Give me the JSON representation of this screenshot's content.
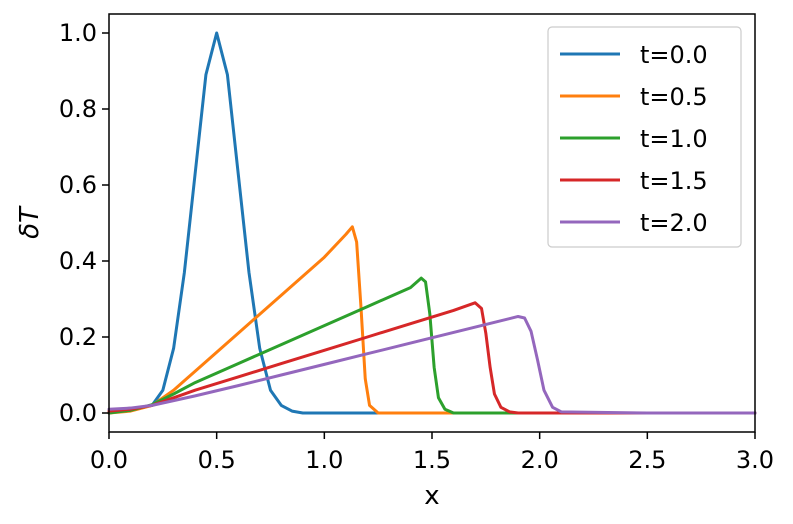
{
  "chart_data": {
    "type": "line",
    "title": "",
    "xlabel": "x",
    "ylabel": "δT",
    "xlim": [
      0.0,
      3.0
    ],
    "ylim": [
      -0.05,
      1.05
    ],
    "xticks": [
      "0.0",
      "0.5",
      "1.0",
      "1.5",
      "2.0",
      "2.5",
      "3.0"
    ],
    "yticks": [
      "0.0",
      "0.2",
      "0.4",
      "0.6",
      "0.8",
      "1.0"
    ],
    "grid": false,
    "legend_position": "top-right",
    "series": [
      {
        "name": "t=0.0",
        "color": "#1f77b4",
        "x": [
          0.0,
          0.2,
          0.25,
          0.3,
          0.35,
          0.4,
          0.45,
          0.5,
          0.55,
          0.6,
          0.65,
          0.7,
          0.75,
          0.8,
          0.85,
          0.9,
          1.0,
          1.5,
          2.0,
          2.5,
          3.0
        ],
        "y": [
          0.0,
          0.02,
          0.06,
          0.17,
          0.37,
          0.63,
          0.89,
          1.0,
          0.89,
          0.63,
          0.37,
          0.17,
          0.06,
          0.02,
          0.005,
          0.0,
          0.0,
          0.0,
          0.0,
          0.0,
          0.0
        ]
      },
      {
        "name": "t=0.5",
        "color": "#ff7f0e",
        "x": [
          0.0,
          0.1,
          0.2,
          0.3,
          0.4,
          0.5,
          0.6,
          0.7,
          0.8,
          0.9,
          1.0,
          1.1,
          1.13,
          1.15,
          1.17,
          1.19,
          1.21,
          1.25,
          1.3,
          1.5,
          2.0,
          2.5,
          3.0
        ],
        "y": [
          0.0,
          0.005,
          0.02,
          0.06,
          0.11,
          0.16,
          0.21,
          0.26,
          0.31,
          0.36,
          0.41,
          0.47,
          0.49,
          0.45,
          0.28,
          0.09,
          0.02,
          0.0,
          0.0,
          0.0,
          0.0,
          0.0,
          0.0
        ]
      },
      {
        "name": "t=1.0",
        "color": "#2ca02c",
        "x": [
          0.0,
          0.1,
          0.2,
          0.3,
          0.4,
          0.5,
          0.6,
          0.7,
          0.8,
          0.9,
          1.0,
          1.1,
          1.2,
          1.3,
          1.4,
          1.45,
          1.47,
          1.49,
          1.51,
          1.53,
          1.56,
          1.6,
          2.0,
          2.5,
          3.0
        ],
        "y": [
          0.0,
          0.007,
          0.022,
          0.05,
          0.08,
          0.105,
          0.13,
          0.155,
          0.18,
          0.205,
          0.23,
          0.255,
          0.28,
          0.305,
          0.33,
          0.355,
          0.345,
          0.26,
          0.12,
          0.04,
          0.01,
          0.0,
          0.0,
          0.0,
          0.0
        ]
      },
      {
        "name": "t=1.5",
        "color": "#d62728",
        "x": [
          0.0,
          0.1,
          0.2,
          0.4,
          0.6,
          0.8,
          1.0,
          1.2,
          1.4,
          1.6,
          1.7,
          1.73,
          1.75,
          1.77,
          1.79,
          1.82,
          1.86,
          1.9,
          2.5,
          3.0
        ],
        "y": [
          0.005,
          0.01,
          0.02,
          0.06,
          0.095,
          0.13,
          0.165,
          0.2,
          0.235,
          0.27,
          0.29,
          0.275,
          0.21,
          0.12,
          0.05,
          0.015,
          0.003,
          0.0,
          0.0,
          0.0
        ],
        "y_note": ""
      },
      {
        "name": "t=2.0",
        "color": "#9467bd",
        "x": [
          0.0,
          0.1,
          0.2,
          0.4,
          0.6,
          0.8,
          1.0,
          1.2,
          1.4,
          1.6,
          1.8,
          1.9,
          1.93,
          1.96,
          1.99,
          2.02,
          2.06,
          2.1,
          2.5,
          3.0
        ],
        "y": [
          0.01,
          0.013,
          0.02,
          0.045,
          0.072,
          0.1,
          0.128,
          0.156,
          0.184,
          0.212,
          0.24,
          0.254,
          0.25,
          0.215,
          0.14,
          0.06,
          0.015,
          0.003,
          0.0,
          0.0
        ]
      }
    ]
  }
}
